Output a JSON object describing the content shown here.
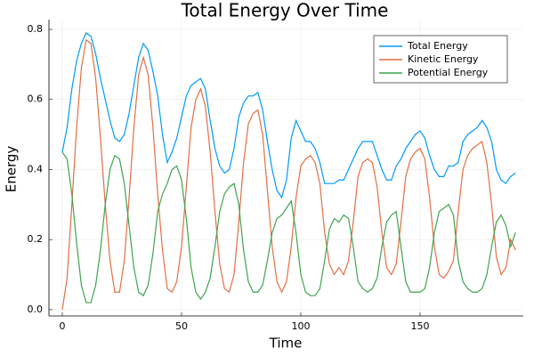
{
  "chart_data": {
    "type": "line",
    "title": "Total Energy Over Time",
    "x_label": "Time",
    "y_label": "Energy",
    "x": [
      0,
      2,
      4,
      6,
      8,
      10,
      12,
      14,
      16,
      18,
      20,
      22,
      24,
      26,
      28,
      30,
      32,
      34,
      36,
      38,
      40,
      42,
      44,
      46,
      48,
      50,
      52,
      54,
      56,
      58,
      60,
      62,
      64,
      66,
      68,
      70,
      72,
      74,
      76,
      78,
      80,
      82,
      84,
      86,
      88,
      90,
      92,
      94,
      96,
      98,
      100,
      102,
      104,
      106,
      108,
      110,
      112,
      114,
      116,
      118,
      120,
      122,
      124,
      126,
      128,
      130,
      132,
      134,
      136,
      138,
      140,
      142,
      144,
      146,
      148,
      150,
      152,
      154,
      156,
      158,
      160,
      162,
      164,
      166,
      168,
      170,
      172,
      174,
      176,
      178,
      180,
      182,
      184,
      186,
      188,
      190
    ],
    "series": [
      {
        "name": "Total Energy",
        "color": "#009af9",
        "values": [
          0.45,
          0.52,
          0.63,
          0.71,
          0.76,
          0.79,
          0.78,
          0.73,
          0.66,
          0.6,
          0.54,
          0.49,
          0.48,
          0.5,
          0.56,
          0.64,
          0.72,
          0.76,
          0.74,
          0.68,
          0.61,
          0.5,
          0.42,
          0.45,
          0.49,
          0.55,
          0.61,
          0.64,
          0.65,
          0.66,
          0.63,
          0.54,
          0.46,
          0.41,
          0.39,
          0.4,
          0.46,
          0.55,
          0.59,
          0.61,
          0.61,
          0.62,
          0.57,
          0.48,
          0.4,
          0.34,
          0.32,
          0.37,
          0.49,
          0.54,
          0.51,
          0.48,
          0.48,
          0.46,
          0.42,
          0.36,
          0.36,
          0.36,
          0.37,
          0.37,
          0.4,
          0.43,
          0.46,
          0.48,
          0.48,
          0.48,
          0.44,
          0.4,
          0.37,
          0.37,
          0.41,
          0.43,
          0.46,
          0.48,
          0.5,
          0.51,
          0.49,
          0.44,
          0.4,
          0.38,
          0.38,
          0.41,
          0.41,
          0.42,
          0.48,
          0.5,
          0.51,
          0.52,
          0.54,
          0.52,
          0.48,
          0.4,
          0.37,
          0.36,
          0.38,
          0.39
        ]
      },
      {
        "name": "Kinetic Energy",
        "color": "#e26f46",
        "values": [
          0.0,
          0.09,
          0.3,
          0.52,
          0.69,
          0.77,
          0.76,
          0.66,
          0.49,
          0.3,
          0.14,
          0.05,
          0.05,
          0.14,
          0.32,
          0.52,
          0.67,
          0.72,
          0.67,
          0.52,
          0.33,
          0.17,
          0.06,
          0.05,
          0.08,
          0.18,
          0.35,
          0.52,
          0.6,
          0.63,
          0.58,
          0.45,
          0.28,
          0.13,
          0.06,
          0.05,
          0.1,
          0.25,
          0.42,
          0.53,
          0.56,
          0.57,
          0.5,
          0.34,
          0.18,
          0.08,
          0.05,
          0.08,
          0.18,
          0.32,
          0.41,
          0.43,
          0.44,
          0.42,
          0.36,
          0.22,
          0.13,
          0.1,
          0.12,
          0.1,
          0.14,
          0.25,
          0.38,
          0.42,
          0.43,
          0.42,
          0.35,
          0.22,
          0.12,
          0.1,
          0.13,
          0.25,
          0.38,
          0.43,
          0.45,
          0.46,
          0.43,
          0.32,
          0.18,
          0.1,
          0.09,
          0.11,
          0.14,
          0.28,
          0.4,
          0.44,
          0.46,
          0.47,
          0.48,
          0.42,
          0.3,
          0.15,
          0.1,
          0.12,
          0.2,
          0.17
        ]
      },
      {
        "name": "Potential Energy",
        "color": "#3ea44e",
        "values": [
          0.45,
          0.43,
          0.33,
          0.19,
          0.07,
          0.02,
          0.02,
          0.07,
          0.17,
          0.3,
          0.4,
          0.44,
          0.43,
          0.36,
          0.24,
          0.12,
          0.05,
          0.04,
          0.07,
          0.16,
          0.28,
          0.33,
          0.36,
          0.4,
          0.41,
          0.37,
          0.26,
          0.12,
          0.05,
          0.03,
          0.05,
          0.09,
          0.18,
          0.28,
          0.33,
          0.35,
          0.36,
          0.3,
          0.17,
          0.08,
          0.05,
          0.05,
          0.07,
          0.14,
          0.22,
          0.26,
          0.27,
          0.29,
          0.31,
          0.22,
          0.1,
          0.05,
          0.04,
          0.04,
          0.06,
          0.14,
          0.23,
          0.26,
          0.25,
          0.27,
          0.26,
          0.18,
          0.08,
          0.06,
          0.05,
          0.06,
          0.09,
          0.18,
          0.25,
          0.27,
          0.28,
          0.18,
          0.08,
          0.05,
          0.05,
          0.05,
          0.06,
          0.12,
          0.22,
          0.28,
          0.29,
          0.3,
          0.27,
          0.14,
          0.08,
          0.06,
          0.05,
          0.05,
          0.06,
          0.1,
          0.18,
          0.25,
          0.27,
          0.24,
          0.18,
          0.22
        ]
      }
    ],
    "xlim": [
      -5.6,
      193.3
    ],
    "ylim": [
      -0.018,
      0.828
    ],
    "xticks": [
      0,
      50,
      100,
      150
    ],
    "yticks": [
      {
        "value": 0,
        "label": "0.0"
      },
      0.2,
      0.4,
      0.6,
      0.8
    ],
    "grid": true,
    "legend": "top-right"
  }
}
